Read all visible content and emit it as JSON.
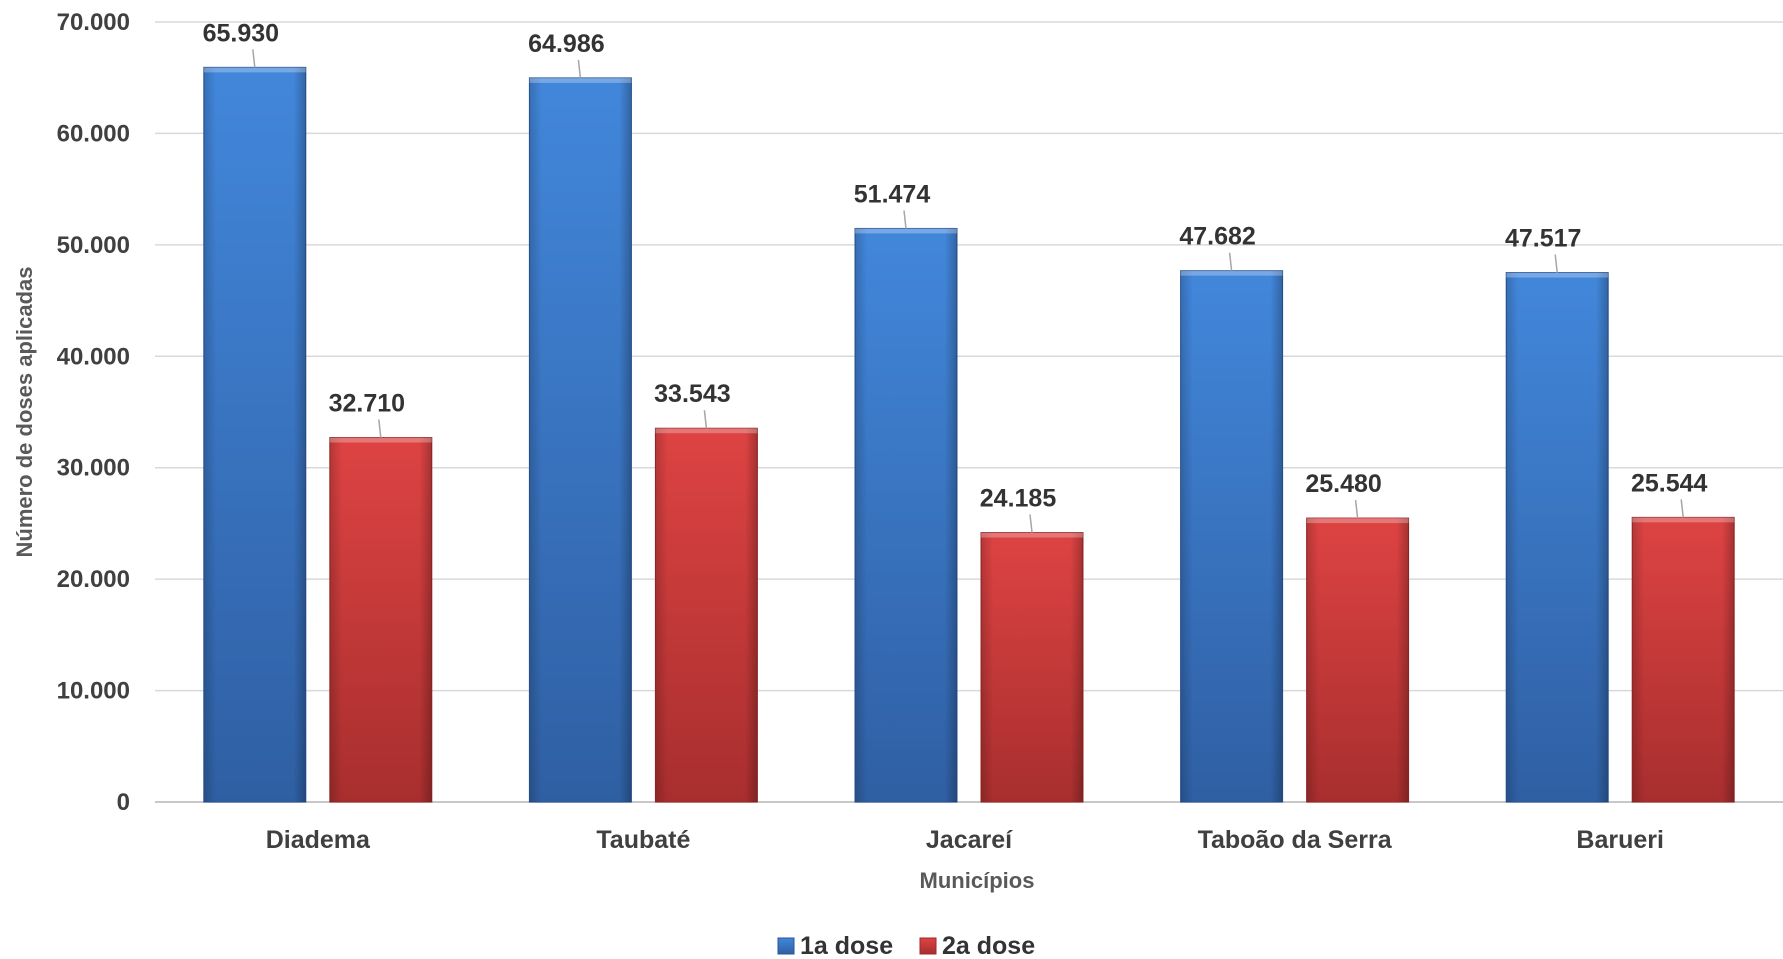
{
  "chart_data": {
    "type": "bar",
    "categories": [
      "Diadema",
      "Taubaté",
      "Jacareí",
      "Taboão da Serra",
      "Barueri"
    ],
    "series": [
      {
        "name": "1a dose",
        "values": [
          65930,
          64986,
          51474,
          47682,
          47517
        ],
        "labels": [
          "65.930",
          "64.986",
          "51.474",
          "47.682",
          "47.517"
        ],
        "color": "#3a7bd5"
      },
      {
        "name": "2a dose",
        "values": [
          32710,
          33543,
          24185,
          25480,
          25544
        ],
        "labels": [
          "32.710",
          "33.543",
          "24.185",
          "25.480",
          "25.544"
        ],
        "color": "#d63a3a"
      }
    ],
    "xlabel": "Municípios",
    "ylabel": "Número de doses aplicadas",
    "ylim": [
      0,
      70000
    ],
    "yticks": [
      0,
      10000,
      20000,
      30000,
      40000,
      50000,
      60000,
      70000
    ],
    "ytick_labels": [
      "0",
      "10.000",
      "20.000",
      "30.000",
      "40.000",
      "50.000",
      "60.000",
      "70.000"
    ],
    "grid": true,
    "legend_position": "bottom"
  }
}
